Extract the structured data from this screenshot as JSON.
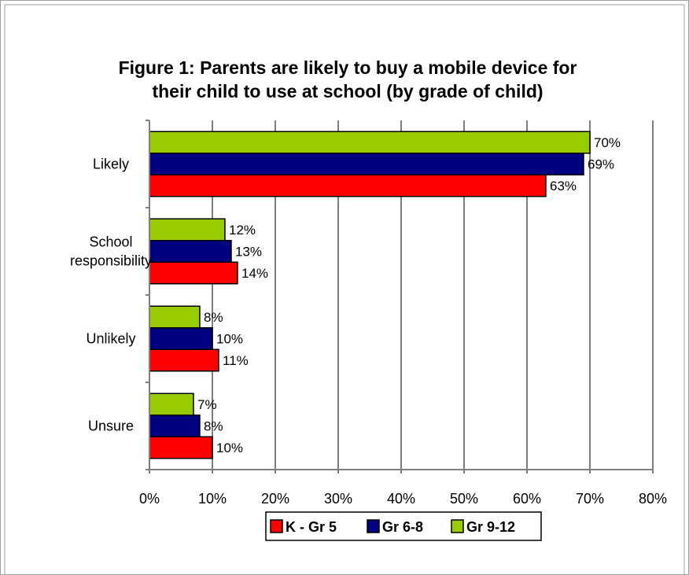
{
  "chart_data": {
    "type": "bar",
    "orientation": "horizontal",
    "title": "Figure 1: Parents are likely to buy a mobile device for their child to use at school (by grade of child)",
    "title_lines": [
      "Figure 1: Parents are likely to buy a mobile device for",
      "their child to use at school (by grade of child)"
    ],
    "categories": [
      "Likely",
      "School responsibility",
      "Unlikely",
      "Unsure"
    ],
    "category_lines": [
      [
        "Likely"
      ],
      [
        "School",
        "responsibility"
      ],
      [
        "Unlikely"
      ],
      [
        "Unsure"
      ]
    ],
    "series": [
      {
        "name": "K - Gr 5",
        "color": "#ff0000",
        "values": [
          63,
          14,
          11,
          10
        ]
      },
      {
        "name": "Gr 6-8",
        "color": "#000080",
        "values": [
          69,
          13,
          10,
          8
        ]
      },
      {
        "name": "Gr 9-12",
        "color": "#99cc00",
        "values": [
          70,
          12,
          8,
          7
        ]
      }
    ],
    "xlim": [
      0,
      80
    ],
    "x_ticks": [
      0,
      10,
      20,
      30,
      40,
      50,
      60,
      70,
      80
    ],
    "x_tick_labels": [
      "0%",
      "10%",
      "20%",
      "30%",
      "40%",
      "50%",
      "60%",
      "70%",
      "80%"
    ],
    "value_suffix": "%",
    "grid": true,
    "legend_position": "bottom",
    "xlabel": "",
    "ylabel": ""
  }
}
